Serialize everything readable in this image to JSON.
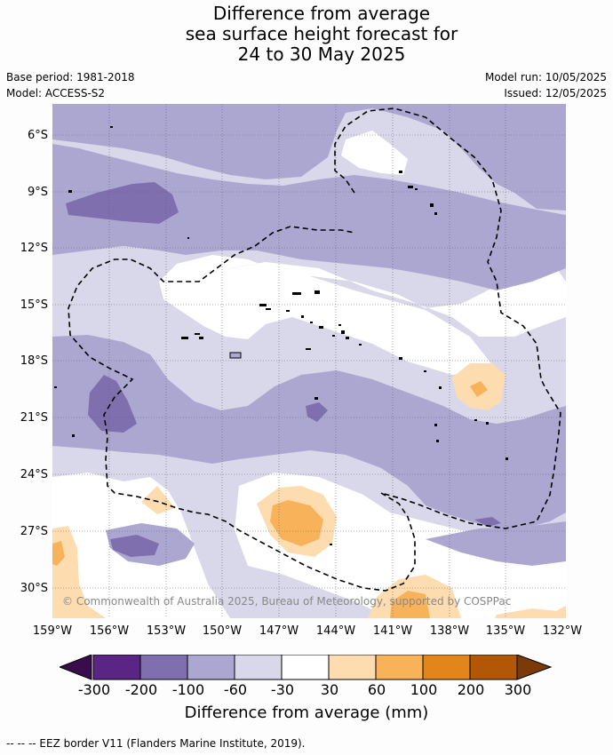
{
  "title": {
    "line1": "Difference from average",
    "line2": "sea surface height forecast for",
    "line3": "24 to 30 May 2025"
  },
  "meta": {
    "base_period": "Base period: 1981-2018",
    "model": "Model: ACCESS-S2",
    "model_run": "Model run: 10/05/2025",
    "issued": "Issued: 12/05/2025"
  },
  "lat_labels": [
    "6°S",
    "9°S",
    "12°S",
    "15°S",
    "18°S",
    "21°S",
    "24°S",
    "27°S",
    "30°S"
  ],
  "lon_labels": [
    "159°W",
    "156°W",
    "153°W",
    "150°W",
    "147°W",
    "144°W",
    "141°W",
    "138°W",
    "135°W",
    "132°W"
  ],
  "copyright": "© Commonwealth of Australia 2025, Bureau of Meteorology, supported by COSPPac",
  "colorbar": {
    "label": "Difference from average (mm)",
    "ticks": [
      "-300",
      "-200",
      "-100",
      "-60",
      "-30",
      "30",
      "60",
      "100",
      "200",
      "300"
    ],
    "colors": {
      "below_min": "#3b0c4d",
      "bins": [
        "#5b2586",
        "#7f6fae",
        "#aca7d1",
        "#d8d8ea",
        "#ffffff",
        "#fddcb0",
        "#f8b35a",
        "#e2851a",
        "#b25607"
      ],
      "above_max": "#7b3a08"
    }
  },
  "eez_note": "--  --  -- EEZ border V11 (Flanders Marine Institute, 2019)."
}
